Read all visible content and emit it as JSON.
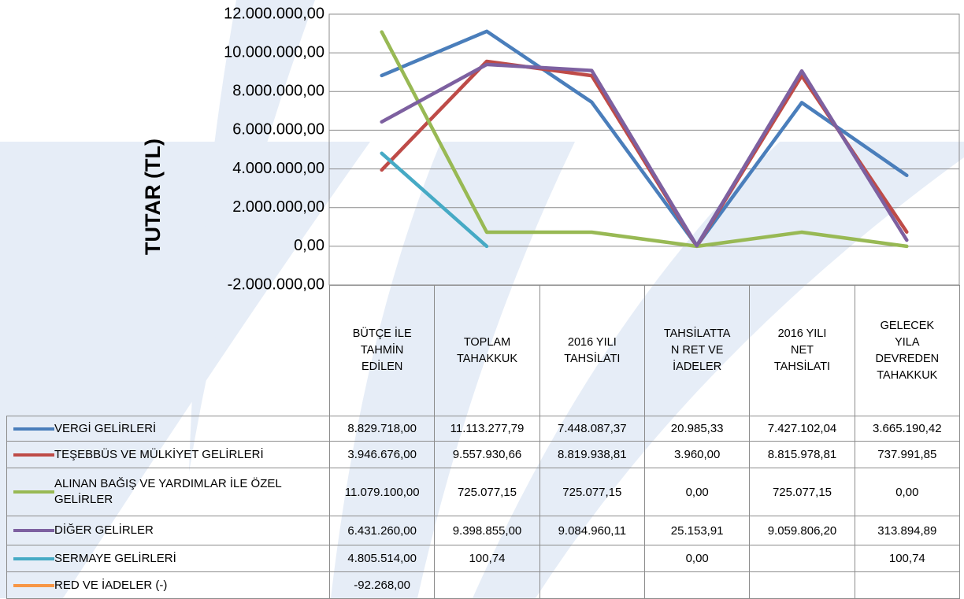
{
  "chart_data": {
    "type": "line",
    "y_label": "TUTAR (TL)",
    "categories": [
      "BÜTÇE İLE TAHMİN EDİLEN",
      "TOPLAM TAHAKKUK",
      "2016 YILI TAHSİLATI",
      "TAHSİLATTAN RET VE İADELER",
      "2016 YILI NET TAHSİLATI",
      "GELECEK YILA DEVREDEN TAHAKKUK"
    ],
    "ylim": [
      -2000000,
      12000000
    ],
    "yticks": [
      {
        "value": -2000000,
        "label": "-2.000.000,00"
      },
      {
        "value": 0,
        "label": "0,00"
      },
      {
        "value": 2000000,
        "label": "2.000.000,00"
      },
      {
        "value": 4000000,
        "label": "4.000.000,00"
      },
      {
        "value": 6000000,
        "label": "6.000.000,00"
      },
      {
        "value": 8000000,
        "label": "8.000.000,00"
      },
      {
        "value": 10000000,
        "label": "10.000.000,00"
      },
      {
        "value": 12000000,
        "label": "12.000.000,00"
      }
    ],
    "grid": true,
    "series": [
      {
        "name": "VERGİ GELİRLERİ",
        "color": "#4a7ebb",
        "values": [
          8829718.0,
          11113277.79,
          7448087.37,
          20985.33,
          7427102.04,
          3665190.42
        ],
        "value_labels": [
          "8.829.718,00",
          "11.113.277,79",
          "7.448.087,37",
          "20.985,33",
          "7.427.102,04",
          "3.665.190,42"
        ]
      },
      {
        "name": "TEŞEBBÜS VE MÜLKİYET GELİRLERİ",
        "color": "#be4b48",
        "values": [
          3946676.0,
          9557930.66,
          8819938.81,
          3960.0,
          8815978.81,
          737991.85
        ],
        "value_labels": [
          "3.946.676,00",
          "9.557.930,66",
          "8.819.938,81",
          "3.960,00",
          "8.815.978,81",
          "737.991,85"
        ]
      },
      {
        "name": "ALINAN BAĞIŞ VE YARDIMLAR İLE ÖZEL GELİRLER",
        "color": "#98b954",
        "values": [
          11079100.0,
          725077.15,
          725077.15,
          0,
          725077.15,
          0
        ],
        "value_labels": [
          "11.079.100,00",
          "725.077,15",
          "725.077,15",
          "0,00",
          "725.077,15",
          "0,00"
        ]
      },
      {
        "name": "DİĞER GELİRLER",
        "color": "#7d60a0",
        "values": [
          6431260.0,
          9398855.0,
          9084960.11,
          25153.91,
          9059806.2,
          313894.89
        ],
        "value_labels": [
          "6.431.260,00",
          "9.398.855,00",
          "9.084.960,11",
          "25.153,91",
          "9.059.806,20",
          "313.894,89"
        ]
      },
      {
        "name": "SERMAYE GELİRLERİ",
        "color": "#46aac5",
        "values": [
          4805514.0,
          100.74,
          null,
          0,
          null,
          100.74
        ],
        "value_labels": [
          "4.805.514,00",
          "100,74",
          null,
          "0,00",
          null,
          "100,74"
        ]
      },
      {
        "name": "RED VE İADELER (-)",
        "color": "#f79646",
        "values": [
          -92268.0,
          null,
          null,
          null,
          null,
          null
        ],
        "value_labels": [
          "-92.268,00",
          null,
          null,
          null,
          null,
          null
        ]
      }
    ]
  }
}
